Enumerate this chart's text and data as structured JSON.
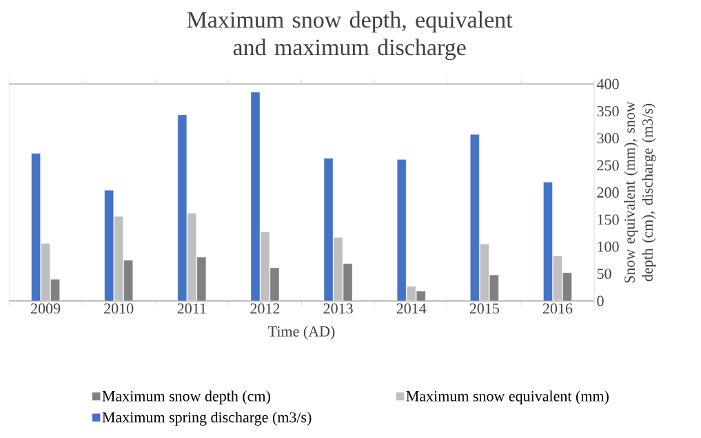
{
  "chart_data": {
    "type": "bar",
    "title": "Maximum snow depth, equivalent and maximum discharge",
    "xlabel": "Time (AD)",
    "ylabel": "Snow equivalent (mm), snow depth (cm), discharge (m3/s)",
    "categories": [
      "2009",
      "2010",
      "2011",
      "2012",
      "2013",
      "2014",
      "2015",
      "2016"
    ],
    "series": [
      {
        "name": "Maximum spring discharge (m3/s)",
        "color": "#4472c4",
        "values": [
          272,
          204,
          343,
          385,
          263,
          261,
          307,
          219
        ]
      },
      {
        "name": "Maximum snow equivalent (mm)",
        "color": "#bfbfbf",
        "values": [
          106,
          156,
          162,
          127,
          117,
          27,
          105,
          83
        ]
      },
      {
        "name": "Maximum snow depth (cm)",
        "color": "#808080",
        "values": [
          40,
          75,
          81,
          61,
          69,
          18,
          48,
          52
        ]
      }
    ],
    "ylim": [
      0,
      400
    ],
    "yticks": [
      0,
      50,
      100,
      150,
      200,
      250,
      300,
      350,
      400
    ],
    "legend": "bottom"
  }
}
